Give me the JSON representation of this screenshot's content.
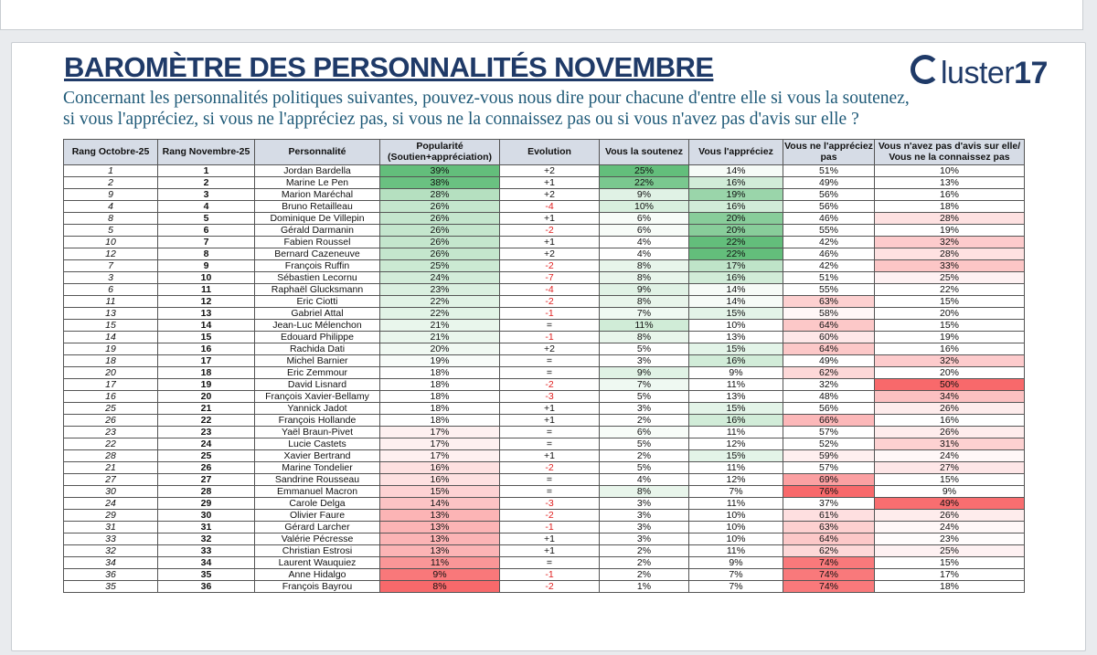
{
  "title": "BAROMÈTRE DES PERSONNALITÉS NOVEMBRE",
  "logo": {
    "word": "luster",
    "num": "17"
  },
  "question_line1": "Concernant les personnalités politiques suivantes, pouvez-vous nous dire pour chacune d'entre elle si vous la soutenez,",
  "question_line2": "si vous l'appréciez, si vous ne l'appréciez pas, si vous ne la connaissez pas ou si vous n'avez pas d'avis sur elle ?",
  "headers": {
    "rang_oct": "Rang Octobre-25",
    "rang_nov": "Rang Novembre-25",
    "personnalite": "Personnalité",
    "popularite_1": "Popularité",
    "popularite_2": "(Soutien+appréciation)",
    "evolution": "Evolution",
    "soutenez": "Vous la soutenez",
    "appreciez": "Vous l'appréciez",
    "napprec_1": "Vous ne l'appréciez",
    "napprec_2": "pas",
    "noavis_1": "Vous n'avez pas d'avis sur elle/",
    "noavis_2": "Vous ne la connaissez pas"
  },
  "colors": {
    "green": "#63be7b",
    "red": "#f8696b",
    "white": "#ffffff",
    "header": "#d6dce6",
    "title": "#1f3a68",
    "negative": "#e02020"
  },
  "chart_data": {
    "type": "table",
    "title": "BAROMÈTRE DES PERSONNALITÉS NOVEMBRE",
    "rows": [
      [
        "1",
        "1",
        "Jordan Bardella",
        "39%",
        "+2",
        "25%",
        "14%",
        "51%",
        "10%"
      ],
      [
        "2",
        "2",
        "Marine Le Pen",
        "38%",
        "+1",
        "22%",
        "16%",
        "49%",
        "13%"
      ],
      [
        "9",
        "3",
        "Marion Maréchal",
        "28%",
        "+2",
        "9%",
        "19%",
        "56%",
        "16%"
      ],
      [
        "4",
        "4",
        "Bruno Retailleau",
        "26%",
        "-4",
        "10%",
        "16%",
        "56%",
        "18%"
      ],
      [
        "8",
        "5",
        "Dominique De Villepin",
        "26%",
        "+1",
        "6%",
        "20%",
        "46%",
        "28%"
      ],
      [
        "5",
        "6",
        "Gérald Darmanin",
        "26%",
        "-2",
        "6%",
        "20%",
        "55%",
        "19%"
      ],
      [
        "10",
        "7",
        "Fabien Roussel",
        "26%",
        "+1",
        "4%",
        "22%",
        "42%",
        "32%"
      ],
      [
        "12",
        "8",
        "Bernard Cazeneuve",
        "26%",
        "+2",
        "4%",
        "22%",
        "46%",
        "28%"
      ],
      [
        "7",
        "9",
        "François Ruffin",
        "25%",
        "-2",
        "8%",
        "17%",
        "42%",
        "33%"
      ],
      [
        "3",
        "10",
        "Sébastien Lecornu",
        "24%",
        "-7",
        "8%",
        "16%",
        "51%",
        "25%"
      ],
      [
        "6",
        "11",
        "Raphaël Glucksmann",
        "23%",
        "-4",
        "9%",
        "14%",
        "55%",
        "22%"
      ],
      [
        "11",
        "12",
        "Eric Ciotti",
        "22%",
        "-2",
        "8%",
        "14%",
        "63%",
        "15%"
      ],
      [
        "13",
        "13",
        "Gabriel Attal",
        "22%",
        "-1",
        "7%",
        "15%",
        "58%",
        "20%"
      ],
      [
        "15",
        "14",
        "Jean-Luc Mélenchon",
        "21%",
        "=",
        "11%",
        "10%",
        "64%",
        "15%"
      ],
      [
        "14",
        "15",
        "Edouard Philippe",
        "21%",
        "-1",
        "8%",
        "13%",
        "60%",
        "19%"
      ],
      [
        "19",
        "16",
        "Rachida Dati",
        "20%",
        "+2",
        "5%",
        "15%",
        "64%",
        "16%"
      ],
      [
        "18",
        "17",
        "Michel Barnier",
        "19%",
        "=",
        "3%",
        "16%",
        "49%",
        "32%"
      ],
      [
        "20",
        "18",
        "Eric Zemmour",
        "18%",
        "=",
        "9%",
        "9%",
        "62%",
        "20%"
      ],
      [
        "17",
        "19",
        "David Lisnard",
        "18%",
        "-2",
        "7%",
        "11%",
        "32%",
        "50%"
      ],
      [
        "16",
        "20",
        "François Xavier-Bellamy",
        "18%",
        "-3",
        "5%",
        "13%",
        "48%",
        "34%"
      ],
      [
        "25",
        "21",
        "Yannick Jadot",
        "18%",
        "+1",
        "3%",
        "15%",
        "56%",
        "26%"
      ],
      [
        "26",
        "22",
        "François Hollande",
        "18%",
        "+1",
        "2%",
        "16%",
        "66%",
        "16%"
      ],
      [
        "23",
        "23",
        "Yaël Braun-Pivet",
        "17%",
        "=",
        "6%",
        "11%",
        "57%",
        "26%"
      ],
      [
        "22",
        "24",
        "Lucie Castets",
        "17%",
        "=",
        "5%",
        "12%",
        "52%",
        "31%"
      ],
      [
        "28",
        "25",
        "Xavier Bertrand",
        "17%",
        "+1",
        "2%",
        "15%",
        "59%",
        "24%"
      ],
      [
        "21",
        "26",
        "Marine Tondelier",
        "16%",
        "-2",
        "5%",
        "11%",
        "57%",
        "27%"
      ],
      [
        "27",
        "27",
        "Sandrine Rousseau",
        "16%",
        "=",
        "4%",
        "12%",
        "69%",
        "15%"
      ],
      [
        "30",
        "28",
        "Emmanuel Macron",
        "15%",
        "=",
        "8%",
        "7%",
        "76%",
        "9%"
      ],
      [
        "24",
        "29",
        "Carole Delga",
        "14%",
        "-3",
        "3%",
        "11%",
        "37%",
        "49%"
      ],
      [
        "29",
        "30",
        "Olivier Faure",
        "13%",
        "-2",
        "3%",
        "10%",
        "61%",
        "26%"
      ],
      [
        "31",
        "31",
        "Gérard Larcher",
        "13%",
        "-1",
        "3%",
        "10%",
        "63%",
        "24%"
      ],
      [
        "33",
        "32",
        "Valérie Pécresse",
        "13%",
        "+1",
        "3%",
        "10%",
        "64%",
        "23%"
      ],
      [
        "32",
        "33",
        "Christian Estrosi",
        "13%",
        "+1",
        "2%",
        "11%",
        "62%",
        "25%"
      ],
      [
        "34",
        "34",
        "Laurent Wauquiez",
        "11%",
        "=",
        "2%",
        "9%",
        "74%",
        "15%"
      ],
      [
        "36",
        "35",
        "Anne Hidalgo",
        "9%",
        "-1",
        "2%",
        "7%",
        "74%",
        "17%"
      ],
      [
        "35",
        "36",
        "François Bayrou",
        "8%",
        "-2",
        "1%",
        "7%",
        "74%",
        "18%"
      ]
    ]
  }
}
